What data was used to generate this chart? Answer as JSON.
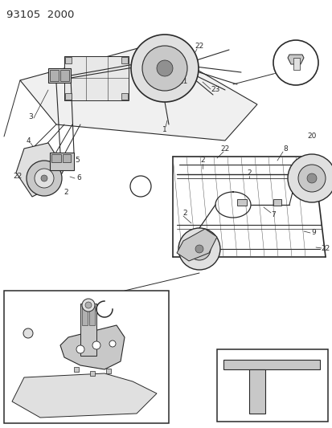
{
  "title": "93105  2000",
  "bg_color": "#ffffff",
  "line_color": "#2a2a2a",
  "gray1": "#b0b0b0",
  "gray2": "#c8c8c8",
  "gray3": "#e0e0e0",
  "gray4": "#909090",
  "title_fontsize": 9.5,
  "label_fontsize": 6.5,
  "small_fontsize": 5.5,
  "fig_width": 4.14,
  "fig_height": 5.33,
  "dpi": 100
}
